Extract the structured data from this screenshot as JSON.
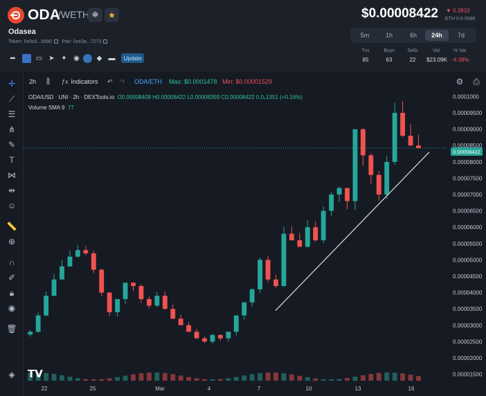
{
  "header": {
    "symbol": "ODA",
    "pair_sep": "/",
    "quote": "WETH",
    "name": "Odasea",
    "token_label": "Token: 0x0c6...5d90",
    "pair_label": "Pair: 0xe3a...7273",
    "update_label": "Update",
    "price": "$0.00008422",
    "change_usd": "▼ 0.3810",
    "change_eth": "ETH 0.0-5086",
    "timeframes": [
      "5m",
      "1h",
      "6h",
      "24h",
      "7d"
    ],
    "active_timeframe": "24h",
    "stats": [
      {
        "label": "Txs",
        "value": "85"
      },
      {
        "label": "Buys",
        "value": "63"
      },
      {
        "label": "Sells",
        "value": "22"
      },
      {
        "label": "Vol.",
        "value": "$23.09K"
      },
      {
        "label": "% Var.",
        "value": "-4.38%"
      }
    ]
  },
  "toolbar": {
    "interval": "2h",
    "indicators": "Indicators",
    "pair": "ODA/ETH",
    "max": "Max: $0.0001478",
    "min": "Min: $0.00001529"
  },
  "legend": {
    "title": "ODA/USD · UNI · 2h · DEXTools.io",
    "ohlc": "O0.00008409 H0.00008422 L0.00008359 C0.00008422 0.0₀1351 (+0.16%)",
    "volume_label": "Volume SMA 9",
    "volume_value": "77"
  },
  "price_tag": "0.00008422",
  "colors": {
    "up": "#26a69a",
    "down": "#ef5350",
    "accent": "#3f8cff",
    "trendline": "#e0e0e0"
  },
  "chart_data": {
    "type": "candlestick",
    "y_axis_labels": [
      "0.0001000",
      "0.00009500",
      "0.00009000",
      "0.00008500",
      "0.00008000",
      "0.00007500",
      "0.00007000",
      "0.00006500",
      "0.00006000",
      "0.00005500",
      "0.00005000",
      "0.00004500",
      "0.00004000",
      "0.00003500",
      "0.00003000",
      "0.00002500",
      "0.00002000",
      "0.00001500"
    ],
    "ylim": [
      1.3e-05,
      0.000102
    ],
    "x_axis_labels": [
      "22",
      "25",
      "Mar",
      "4",
      "7",
      "10",
      "13",
      "16"
    ],
    "last_price": 8.422e-05,
    "trendline": [
      [
        7.5,
        3.45e-05
      ],
      [
        17.0,
        8.3e-05
      ]
    ],
    "closes": [
      2.8e-05,
      3.3e-05,
      3.9e-05,
      4.4e-05,
      4.8e-05,
      5.1e-05,
      5.3e-05,
      5.2e-05,
      4.7e-05,
      4e-05,
      3.4e-05,
      3.8e-05,
      4.3e-05,
      4.2e-05,
      3.8e-05,
      3.6e-05,
      3.9e-05,
      3.5e-05,
      3.2e-05,
      3e-05,
      2.8e-05,
      2.6e-05,
      2.5e-05,
      2.7e-05,
      2.6e-05,
      2.8e-05,
      3.3e-05,
      3.7e-05,
      4.1e-05,
      5e-05,
      4.4e-05,
      4.2e-05,
      5.8e-05,
      5.6e-05,
      5.4e-05,
      6e-05,
      5.6e-05,
      6.5e-05,
      7e-05,
      7.2e-05,
      6.8e-05,
      9e-05,
      8.2e-05,
      7.6e-05,
      7e-05,
      8e-05,
      9.5e-05,
      8.8e-05,
      8.5e-05,
      8.42e-05
    ],
    "x_range_days": [
      20.5,
      18.0
    ]
  }
}
